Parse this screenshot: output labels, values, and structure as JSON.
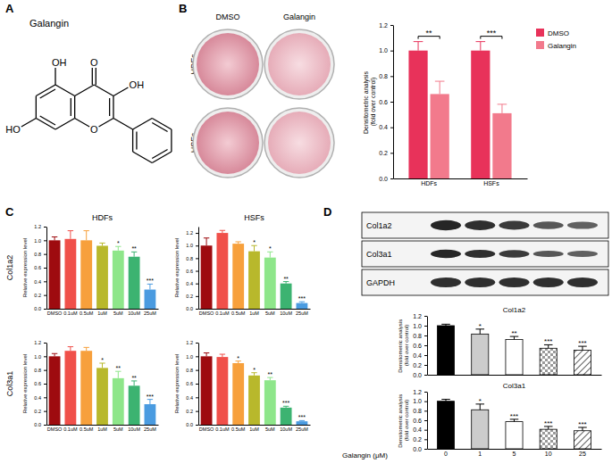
{
  "chart_data": [
    {
      "type": "bar",
      "y_label": "Densitometric analysis (fold over control)",
      "categories": [
        "HDFs",
        "HSFs"
      ],
      "series": [
        {
          "name": "DMSO",
          "color": "#e8325a",
          "values": [
            1.0,
            1.0
          ],
          "errors": [
            0.07,
            0.07
          ]
        },
        {
          "name": "Galangin",
          "color": "#f27a8c",
          "values": [
            0.66,
            0.51
          ],
          "errors": [
            0.1,
            0.07
          ]
        }
      ],
      "annotations": [
        "**",
        "***"
      ],
      "legend": "right",
      "ylim": [
        0,
        1.2
      ],
      "yticks": [
        {
          "value": 0,
          "label": "0.0"
        },
        0.2,
        0.4,
        0.6,
        0.8,
        {
          "value": 1,
          "label": "1.0"
        },
        1.2
      ]
    },
    {
      "type": "bar",
      "title": "HDFs",
      "y_label": "Relative expression level",
      "categories": [
        "DMSO",
        "0.1uM",
        "0.5uM",
        "1uM",
        "5uM",
        "10uM",
        "25uM"
      ],
      "values": [
        1.0,
        1.02,
        1.0,
        0.92,
        0.85,
        0.76,
        0.28
      ],
      "errors": [
        0.05,
        0.12,
        0.14,
        0.04,
        0.06,
        0.07,
        0.08
      ],
      "annotations": [
        null,
        null,
        null,
        null,
        "*",
        "**",
        "***"
      ],
      "colors": [
        "#9e0b0f",
        "#f0504a",
        "#f7a03c",
        "#b8b82c",
        "#8ee68a",
        "#3cb371",
        "#4a9be0"
      ],
      "ylim": [
        0,
        1.2
      ],
      "yticks": [
        {
          "value": 0,
          "label": "0.0"
        },
        0.2,
        0.4,
        0.6,
        0.8,
        {
          "value": 1,
          "label": "1.0"
        },
        1.2
      ]
    },
    {
      "type": "bar",
      "title": "HSFs",
      "y_label": "Relative expression level",
      "categories": [
        "DMSO",
        "0.1uM",
        "0.5uM",
        "1uM",
        "5uM",
        "10uM",
        "25uM"
      ],
      "values": [
        1.0,
        1.2,
        1.03,
        0.91,
        0.81,
        0.4,
        0.09
      ],
      "errors": [
        0.12,
        0.04,
        0.03,
        0.09,
        0.09,
        0.03,
        0.02
      ],
      "annotations": [
        null,
        null,
        null,
        "*",
        "*",
        "**",
        "***"
      ],
      "colors": [
        "#9e0b0f",
        "#f0504a",
        "#f7a03c",
        "#b8b82c",
        "#8ee68a",
        "#3cb371",
        "#4a9be0"
      ],
      "ylim": [
        0,
        1.3
      ],
      "yticks": [
        {
          "value": 0,
          "label": "0.0"
        },
        0.2,
        0.4,
        0.6,
        0.8,
        {
          "value": 1,
          "label": "1.0"
        },
        1.2
      ]
    },
    {
      "type": "bar",
      "y_label": "Relative expression level",
      "categories": [
        "DMSO",
        "0.1uM",
        "0.5uM",
        "1uM",
        "5uM",
        "10uM",
        "25uM"
      ],
      "values": [
        1.0,
        1.08,
        1.08,
        0.83,
        0.68,
        0.57,
        0.3
      ],
      "errors": [
        0.04,
        0.06,
        0.05,
        0.07,
        0.1,
        0.07,
        0.07
      ],
      "annotations": [
        null,
        null,
        null,
        "*",
        "**",
        "**",
        "***"
      ],
      "colors": [
        "#9e0b0f",
        "#f0504a",
        "#f7a03c",
        "#b8b82c",
        "#8ee68a",
        "#3cb371",
        "#4a9be0"
      ],
      "ylim": [
        0,
        1.2
      ],
      "yticks": [
        {
          "value": 0,
          "label": "0.0"
        },
        0.2,
        0.4,
        0.6,
        0.8,
        {
          "value": 1,
          "label": "1.0"
        },
        1.2
      ]
    },
    {
      "type": "bar",
      "y_label": "Relative expression level",
      "categories": [
        "DMSO",
        "0.1uM",
        "0.5uM",
        "1uM",
        "5uM",
        "10uM",
        "25uM"
      ],
      "values": [
        1.0,
        0.99,
        0.9,
        0.72,
        0.65,
        0.25,
        0.05
      ],
      "errors": [
        0.05,
        0.04,
        0.03,
        0.04,
        0.04,
        0.02,
        0.01
      ],
      "annotations": [
        null,
        null,
        "*",
        "*",
        "**",
        "***",
        "***"
      ],
      "colors": [
        "#9e0b0f",
        "#f0504a",
        "#f7a03c",
        "#b8b82c",
        "#8ee68a",
        "#3cb371",
        "#4a9be0"
      ],
      "ylim": [
        0,
        1.2
      ],
      "yticks": [
        {
          "value": 0,
          "label": "0.0"
        },
        0.2,
        0.4,
        0.6,
        0.8,
        {
          "value": 1,
          "label": "1.0"
        },
        1.2
      ]
    },
    {
      "type": "bar",
      "title": "Col1a2",
      "y_label": "Densitometric analysis (fold over control)",
      "categories": [
        "0",
        "1",
        "5",
        "10",
        "25"
      ],
      "values": [
        1.0,
        0.83,
        0.72,
        0.54,
        0.5
      ],
      "errors": [
        0.03,
        0.1,
        0.06,
        0.07,
        0.08
      ],
      "annotations": [
        null,
        "*",
        "**",
        "***",
        "***"
      ],
      "colors": [
        "#000000",
        "#cccccc",
        "#ffffff",
        "#ffffff",
        "#ffffff"
      ],
      "tick_labels": "y",
      "ylim": [
        0,
        1.2
      ],
      "yticks": [
        {
          "value": 0,
          "label": "0.0"
        },
        0.2,
        0.4,
        0.6,
        0.8,
        {
          "value": 1,
          "label": "1.0"
        },
        1.2
      ]
    },
    {
      "type": "bar",
      "title": "Col3a1",
      "y_label": "Densitometric analysis (fold over control)",
      "x_label": "Galangin (μM)",
      "categories": [
        "0",
        "1",
        "5",
        "10",
        "25"
      ],
      "values": [
        1.0,
        0.82,
        0.57,
        0.41,
        0.38
      ],
      "errors": [
        0.04,
        0.12,
        0.05,
        0.06,
        0.07
      ],
      "annotations": [
        null,
        "*",
        "***",
        "***",
        "***"
      ],
      "colors": [
        "#000000",
        "#cccccc",
        "#ffffff",
        "#ffffff",
        "#ffffff"
      ],
      "ylim": [
        0,
        1.2
      ],
      "yticks": [
        {
          "value": 0,
          "label": "0.0"
        },
        0.2,
        0.4,
        0.6,
        0.8,
        {
          "value": 1,
          "label": "1.0"
        },
        1.2
      ]
    }
  ],
  "figure": {
    "panel_labels": [
      "A",
      "B",
      "C",
      "D"
    ],
    "structure": {
      "title": "Galangin",
      "labels": [
        "O",
        "OH",
        "OH",
        "HO",
        "O"
      ]
    },
    "dishes": {
      "columns": [
        "DMSO",
        "Galangin"
      ],
      "rows": [
        "HDFs",
        "HSFs"
      ]
    },
    "gene_rows": [
      "Col1a2",
      "Col3a1"
    ],
    "blot_rows": [
      "Col1a2",
      "Col3a1",
      "GAPDH"
    ]
  }
}
